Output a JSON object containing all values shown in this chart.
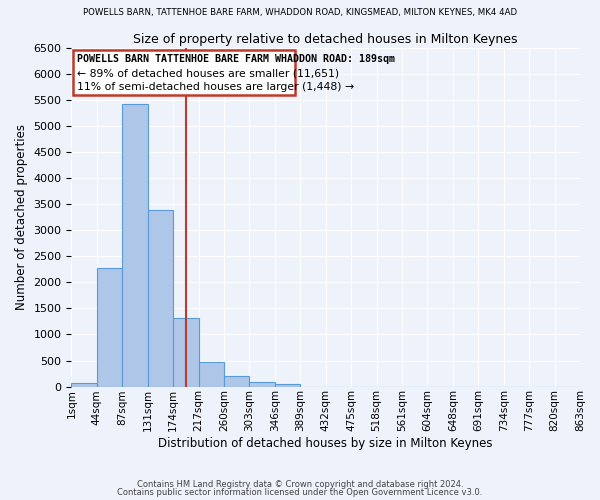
{
  "title_top": "POWELLS BARN, TATTENHOE BARE FARM, WHADDON ROAD, KINGSMEAD, MILTON KEYNES, MK4 4AD",
  "title": "Size of property relative to detached houses in Milton Keynes",
  "xlabel": "Distribution of detached houses by size in Milton Keynes",
  "ylabel": "Number of detached properties",
  "bin_labels": [
    "1sqm",
    "44sqm",
    "87sqm",
    "131sqm",
    "174sqm",
    "217sqm",
    "260sqm",
    "303sqm",
    "346sqm",
    "389sqm",
    "432sqm",
    "475sqm",
    "518sqm",
    "561sqm",
    "604sqm",
    "648sqm",
    "691sqm",
    "734sqm",
    "777sqm",
    "820sqm",
    "863sqm"
  ],
  "bar_values": [
    75,
    2280,
    5420,
    3390,
    1310,
    480,
    210,
    90,
    55,
    0,
    0,
    0,
    0,
    0,
    0,
    0,
    0,
    0,
    0,
    0
  ],
  "bar_color": "#aec6e8",
  "bar_edge_color": "#5b9bd5",
  "vline_bin_index": 4.5,
  "ylim": [
    0,
    6500
  ],
  "yticks": [
    0,
    500,
    1000,
    1500,
    2000,
    2500,
    3000,
    3500,
    4000,
    4500,
    5000,
    5500,
    6000,
    6500
  ],
  "annotation_title": "POWELLS BARN TATTENHOE BARE FARM WHADDON ROAD: 189sqm",
  "annotation_line2": "← 89% of detached houses are smaller (11,651)",
  "annotation_line3": "11% of semi-detached houses are larger (1,448) →",
  "footer1": "Contains HM Land Registry data © Crown copyright and database right 2024.",
  "footer2": "Contains public sector information licensed under the Open Government Licence v3.0.",
  "background_color": "#eef2fb",
  "grid_color": "#ffffff",
  "vline_color": "#c0392b",
  "annotation_box_color": "#c0392b"
}
